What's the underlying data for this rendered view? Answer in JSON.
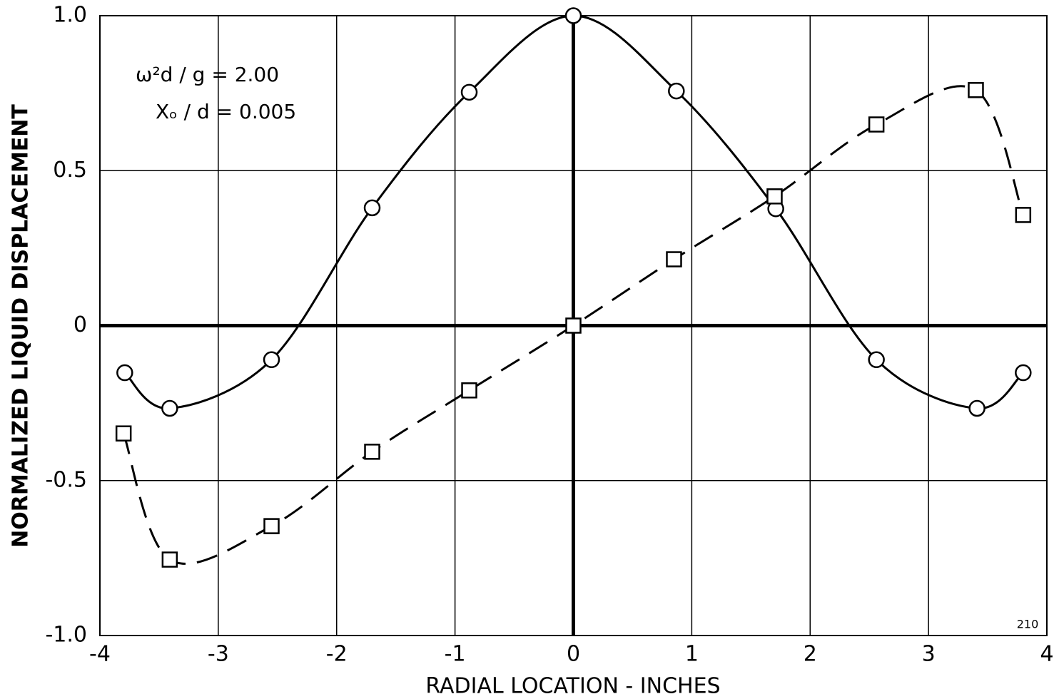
{
  "chart_data": {
    "type": "line",
    "xlabel": "RADIAL LOCATION - INCHES",
    "ylabel": "NORMALIZED LIQUID DISPLACEMENT",
    "annotations": [
      "ω²d / g = 2.00",
      "Xₒ / d = 0.005",
      "210"
    ],
    "xlim": [
      -4,
      4
    ],
    "ylim": [
      -1,
      1
    ],
    "xticks": [
      -4,
      -3,
      -2,
      -1,
      0,
      1,
      2,
      3,
      4
    ],
    "yticks": [
      {
        "value": -1,
        "label": "-1.0"
      },
      -0.5,
      0,
      0.5,
      {
        "value": 1,
        "label": "1.0"
      }
    ],
    "grid": true,
    "series": [
      {
        "color": "#000000",
        "line_style": "solid",
        "marker": "circle",
        "x": [
          -3.79,
          -3.41,
          -2.55,
          -1.7,
          -0.88,
          0,
          0.87,
          1.71,
          2.56,
          3.41,
          3.8
        ],
        "values": [
          -0.152,
          -0.267,
          -0.11,
          0.38,
          0.753,
          1.0,
          0.757,
          0.377,
          -0.11,
          -0.267,
          -0.152
        ]
      },
      {
        "color": "#000000",
        "line_style": "dashed",
        "marker": "square",
        "x": [
          -3.8,
          -3.41,
          -2.55,
          -1.7,
          -0.88,
          0,
          0.85,
          1.7,
          2.56,
          3.4,
          3.8
        ],
        "values": [
          -0.348,
          -0.755,
          -0.647,
          -0.407,
          -0.209,
          0,
          0.214,
          0.417,
          0.649,
          0.76,
          0.357
        ]
      }
    ]
  }
}
